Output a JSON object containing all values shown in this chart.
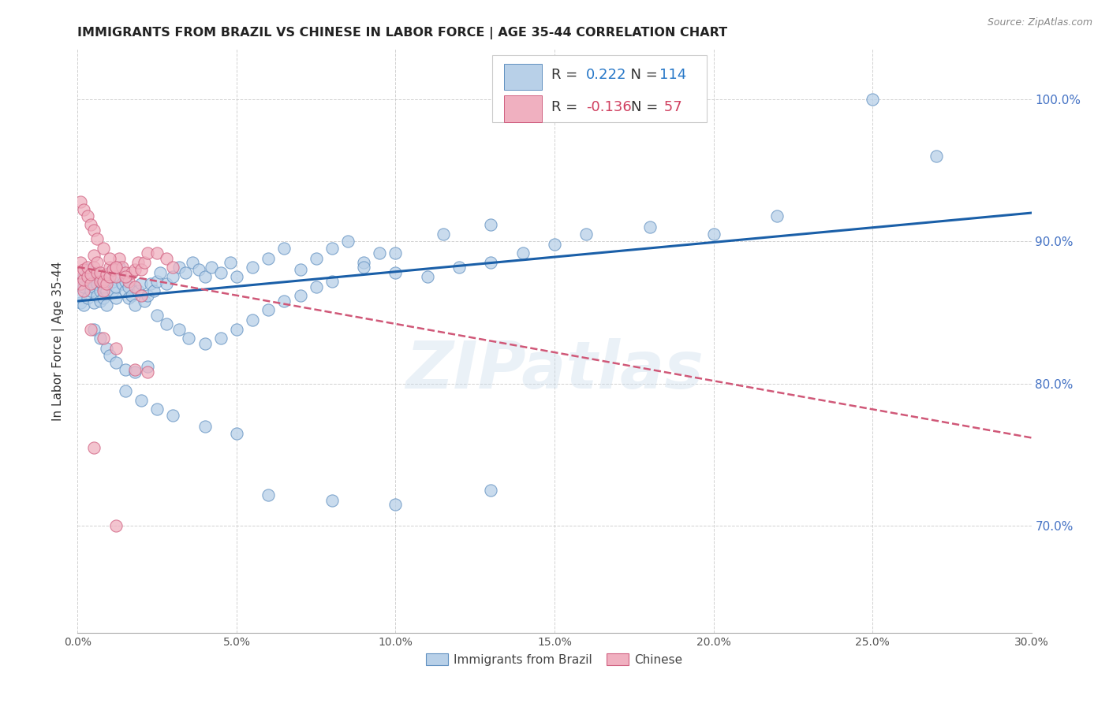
{
  "title": "IMMIGRANTS FROM BRAZIL VS CHINESE IN LABOR FORCE | AGE 35-44 CORRELATION CHART",
  "source": "Source: ZipAtlas.com",
  "ylabel": "In Labor Force | Age 35-44",
  "ytick_labels": [
    "70.0%",
    "80.0%",
    "90.0%",
    "100.0%"
  ],
  "ytick_values": [
    0.7,
    0.8,
    0.9,
    1.0
  ],
  "xlim": [
    0.0,
    0.3
  ],
  "ylim": [
    0.625,
    1.035
  ],
  "xtick_values": [
    0.0,
    0.05,
    0.1,
    0.15,
    0.2,
    0.25,
    0.3
  ],
  "xtick_labels": [
    "0.0%",
    "5.0%",
    "10.0%",
    "15.0%",
    "20.0%",
    "25.0%",
    "30.0%"
  ],
  "legend_r_brazil": "0.222",
  "legend_n_brazil": "114",
  "legend_r_chinese": "-0.136",
  "legend_n_chinese": "57",
  "color_brazil_fill": "#b8d0e8",
  "color_brazil_edge": "#6090c0",
  "color_chinese_fill": "#f0b0c0",
  "color_chinese_edge": "#d06080",
  "color_brazil_line": "#1a5fa8",
  "color_chinese_line": "#d05878",
  "color_r_brazil": "#2878c8",
  "color_r_chinese": "#d04060",
  "color_ytick": "#4472c4",
  "watermark_text": "ZIPatlas",
  "bottom_legend_labels": [
    "Immigrants from Brazil",
    "Chinese"
  ],
  "brazil_scatter_x": [
    0.001,
    0.001,
    0.001,
    0.002,
    0.002,
    0.002,
    0.003,
    0.003,
    0.003,
    0.004,
    0.004,
    0.004,
    0.005,
    0.005,
    0.005,
    0.006,
    0.006,
    0.007,
    0.007,
    0.007,
    0.008,
    0.008,
    0.009,
    0.009,
    0.01,
    0.01,
    0.011,
    0.011,
    0.012,
    0.012,
    0.013,
    0.013,
    0.014,
    0.015,
    0.015,
    0.016,
    0.016,
    0.017,
    0.018,
    0.019,
    0.02,
    0.021,
    0.022,
    0.023,
    0.024,
    0.025,
    0.026,
    0.028,
    0.03,
    0.032,
    0.034,
    0.036,
    0.038,
    0.04,
    0.042,
    0.045,
    0.048,
    0.05,
    0.055,
    0.06,
    0.065,
    0.07,
    0.075,
    0.08,
    0.085,
    0.09,
    0.095,
    0.1,
    0.11,
    0.12,
    0.13,
    0.14,
    0.15,
    0.16,
    0.18,
    0.2,
    0.22,
    0.25,
    0.27,
    0.005,
    0.007,
    0.009,
    0.01,
    0.012,
    0.015,
    0.018,
    0.022,
    0.025,
    0.028,
    0.032,
    0.035,
    0.04,
    0.045,
    0.05,
    0.055,
    0.06,
    0.065,
    0.07,
    0.075,
    0.08,
    0.09,
    0.1,
    0.115,
    0.13,
    0.015,
    0.02,
    0.025,
    0.03,
    0.04,
    0.05,
    0.06,
    0.08,
    0.1,
    0.13
  ],
  "brazil_scatter_y": [
    0.857,
    0.862,
    0.87,
    0.855,
    0.868,
    0.875,
    0.86,
    0.873,
    0.88,
    0.865,
    0.872,
    0.878,
    0.857,
    0.868,
    0.876,
    0.862,
    0.87,
    0.858,
    0.865,
    0.872,
    0.86,
    0.868,
    0.855,
    0.865,
    0.87,
    0.878,
    0.865,
    0.872,
    0.86,
    0.868,
    0.875,
    0.882,
    0.87,
    0.865,
    0.872,
    0.86,
    0.868,
    0.862,
    0.855,
    0.865,
    0.87,
    0.858,
    0.862,
    0.87,
    0.865,
    0.872,
    0.878,
    0.87,
    0.875,
    0.882,
    0.878,
    0.885,
    0.88,
    0.875,
    0.882,
    0.878,
    0.885,
    0.875,
    0.882,
    0.888,
    0.895,
    0.88,
    0.888,
    0.895,
    0.9,
    0.885,
    0.892,
    0.878,
    0.875,
    0.882,
    0.885,
    0.892,
    0.898,
    0.905,
    0.91,
    0.905,
    0.918,
    1.0,
    0.96,
    0.838,
    0.832,
    0.825,
    0.82,
    0.815,
    0.81,
    0.808,
    0.812,
    0.848,
    0.842,
    0.838,
    0.832,
    0.828,
    0.832,
    0.838,
    0.845,
    0.852,
    0.858,
    0.862,
    0.868,
    0.872,
    0.882,
    0.892,
    0.905,
    0.912,
    0.795,
    0.788,
    0.782,
    0.778,
    0.77,
    0.765,
    0.722,
    0.718,
    0.715,
    0.725
  ],
  "chinese_scatter_x": [
    0.001,
    0.001,
    0.001,
    0.002,
    0.002,
    0.002,
    0.003,
    0.003,
    0.004,
    0.004,
    0.005,
    0.005,
    0.006,
    0.006,
    0.007,
    0.007,
    0.008,
    0.008,
    0.009,
    0.009,
    0.01,
    0.01,
    0.011,
    0.012,
    0.012,
    0.013,
    0.014,
    0.015,
    0.016,
    0.017,
    0.018,
    0.019,
    0.02,
    0.021,
    0.022,
    0.025,
    0.028,
    0.03,
    0.001,
    0.002,
    0.003,
    0.004,
    0.005,
    0.006,
    0.008,
    0.01,
    0.012,
    0.015,
    0.018,
    0.02,
    0.004,
    0.008,
    0.012,
    0.018,
    0.022,
    0.005,
    0.012
  ],
  "chinese_scatter_y": [
    0.87,
    0.878,
    0.885,
    0.865,
    0.873,
    0.88,
    0.875,
    0.882,
    0.87,
    0.877,
    0.882,
    0.89,
    0.878,
    0.885,
    0.872,
    0.878,
    0.865,
    0.872,
    0.87,
    0.877,
    0.875,
    0.882,
    0.88,
    0.875,
    0.882,
    0.888,
    0.882,
    0.878,
    0.872,
    0.878,
    0.88,
    0.885,
    0.88,
    0.885,
    0.892,
    0.892,
    0.888,
    0.882,
    0.928,
    0.922,
    0.918,
    0.912,
    0.908,
    0.902,
    0.895,
    0.888,
    0.882,
    0.875,
    0.868,
    0.862,
    0.838,
    0.832,
    0.825,
    0.81,
    0.808,
    0.755,
    0.7
  ],
  "brazil_trend_x": [
    0.0,
    0.3
  ],
  "brazil_trend_y": [
    0.858,
    0.92
  ],
  "chinese_trend_x": [
    0.0,
    0.3
  ],
  "chinese_trend_y": [
    0.882,
    0.762
  ]
}
